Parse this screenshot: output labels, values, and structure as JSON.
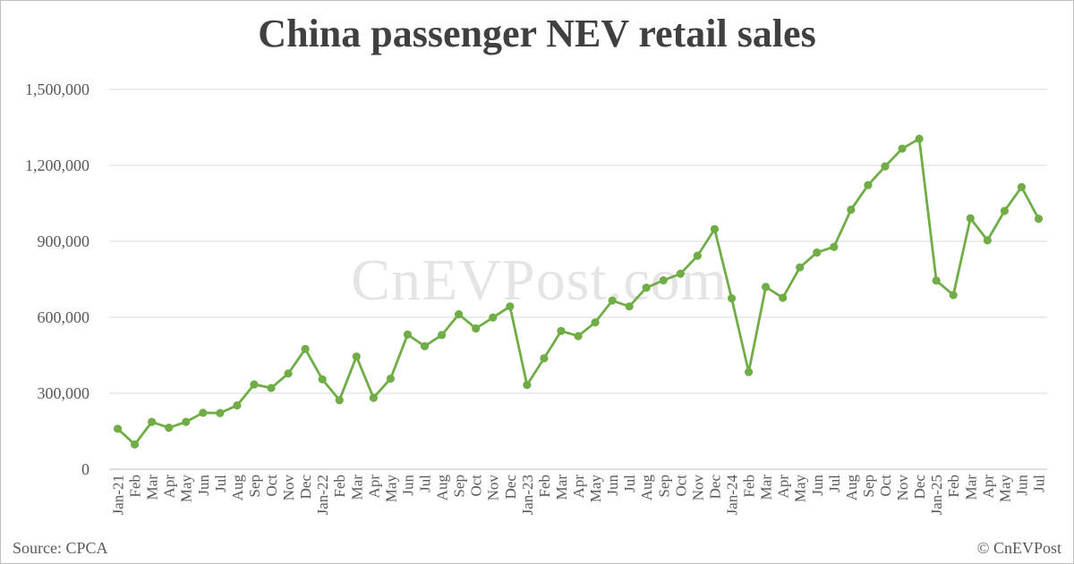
{
  "title": "China passenger NEV retail sales",
  "source": "Source: CPCA",
  "copyright": "© CnEVPost",
  "watermark": "CnEVPost.com",
  "colors": {
    "line": "#70ad47",
    "grid": "#d9d9d9",
    "text": "#595959",
    "title": "#404040"
  },
  "chart_data": {
    "type": "line",
    "title": "China passenger NEV retail sales",
    "xlabel": "",
    "ylabel": "",
    "ylim": [
      0,
      1500000
    ],
    "yticks": [
      0,
      300000,
      600000,
      900000,
      1200000,
      1500000
    ],
    "ytick_labels": [
      "0",
      "300,000",
      "600,000",
      "900,000",
      "1,200,000",
      "1,500,000"
    ],
    "grid": "horizontal",
    "legend": "none",
    "categories": [
      "Jan-21",
      "Feb",
      "Mar",
      "Apr",
      "May",
      "Jun",
      "Jul",
      "Aug",
      "Sep",
      "Oct",
      "Nov",
      "Dec",
      "Jan-22",
      "Feb",
      "Mar",
      "Apr",
      "May",
      "Jun",
      "Jul",
      "Aug",
      "Sep",
      "Oct",
      "Nov",
      "Dec",
      "Jan-23",
      "Feb",
      "Mar",
      "Apr",
      "May",
      "Jun",
      "Jul",
      "Aug",
      "Sep",
      "Oct",
      "Nov",
      "Dec",
      "Jan-24",
      "Feb",
      "Mar",
      "Apr",
      "May",
      "Jun",
      "Jul",
      "Aug",
      "Sep",
      "Oct",
      "Nov",
      "Dec",
      "Jan-25",
      "Feb",
      "Mar",
      "Apr",
      "May",
      "Jun",
      "Jul"
    ],
    "values": [
      160000,
      98000,
      187000,
      164000,
      187000,
      223000,
      222000,
      252000,
      335000,
      321000,
      378000,
      475000,
      355000,
      273000,
      445000,
      282000,
      358000,
      532000,
      486000,
      530000,
      612000,
      556000,
      599000,
      643000,
      333000,
      438000,
      546000,
      526000,
      580000,
      666000,
      643000,
      717000,
      746000,
      772000,
      843000,
      948000,
      675000,
      384000,
      720000,
      677000,
      797000,
      856000,
      878000,
      1025000,
      1122000,
      1196000,
      1266000,
      1305000,
      745000,
      688000,
      991000,
      904000,
      1020000,
      1114000,
      989000
    ]
  }
}
